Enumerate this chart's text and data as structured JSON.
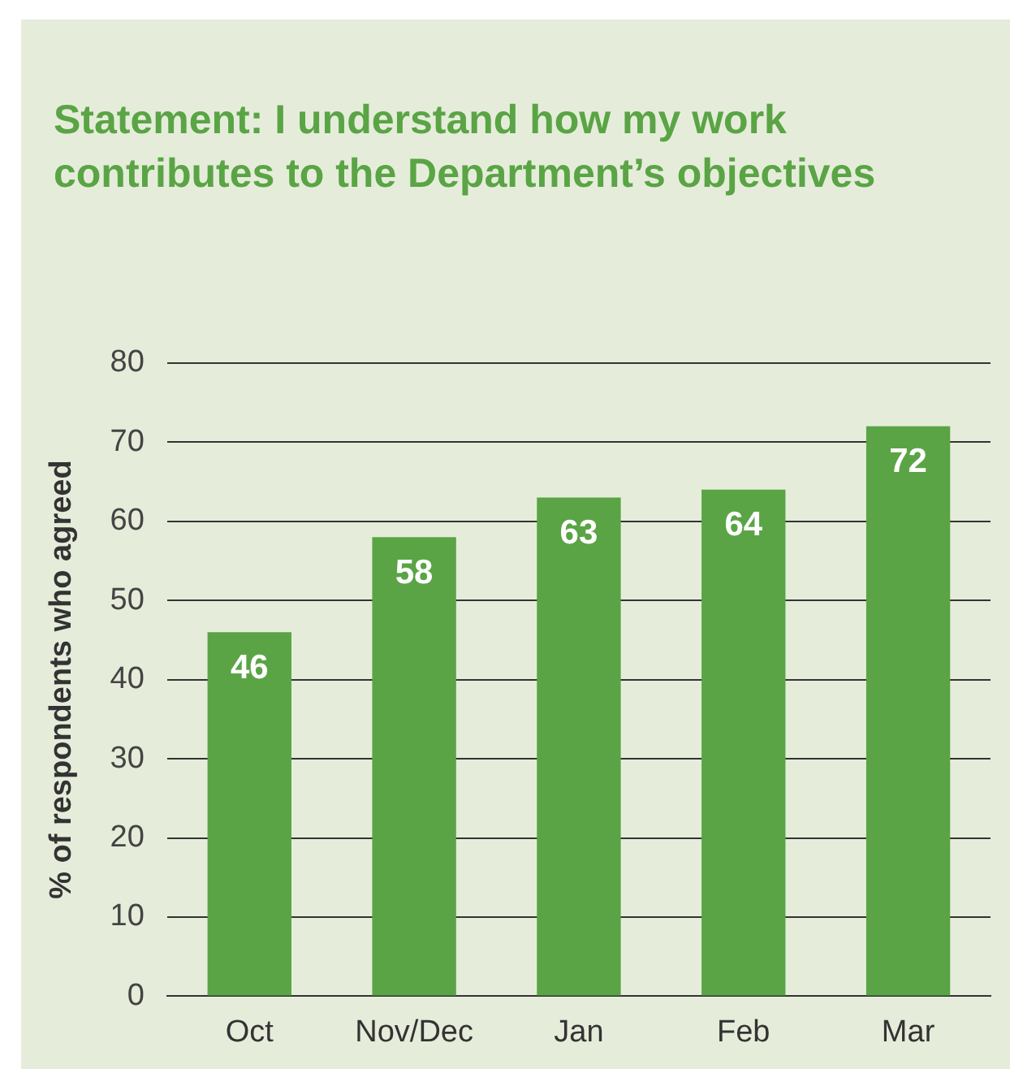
{
  "chart_data": {
    "type": "bar",
    "title": "Statement: I understand how my work contributes to the Department’s objectives",
    "ylabel": "% of respondents who agreed",
    "categories": [
      "Oct",
      "Nov/Dec",
      "Jan",
      "Feb",
      "Mar"
    ],
    "values": [
      46,
      58,
      63,
      64,
      72
    ],
    "color": "#5aa445",
    "ylim": [
      0,
      80
    ],
    "yticks": [
      0,
      10,
      20,
      30,
      40,
      50,
      60,
      70,
      80
    ],
    "grid": "y",
    "data_labels": true
  }
}
